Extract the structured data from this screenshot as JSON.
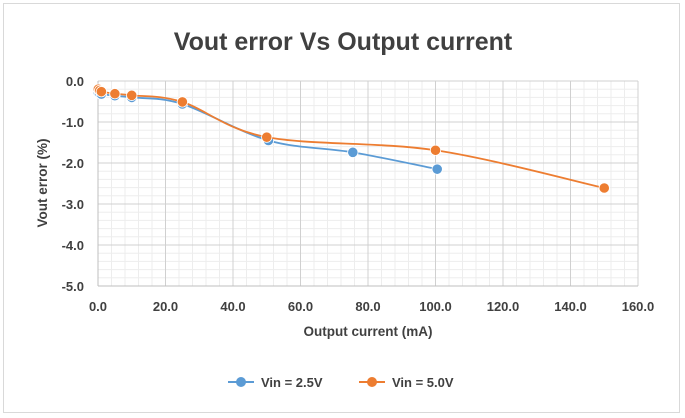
{
  "chart_data": {
    "type": "scatter",
    "title": "Vout error Vs Output current",
    "xlabel": "Output current (mA)",
    "ylabel": "Vout error (%)",
    "xlim": [
      0,
      160
    ],
    "ylim": [
      -5,
      0
    ],
    "x_ticks": [
      "0.0",
      "20.0",
      "40.0",
      "60.0",
      "80.0",
      "100.0",
      "120.0",
      "140.0",
      "160.0"
    ],
    "y_ticks": [
      "0.0",
      "-1.0",
      "-2.0",
      "-3.0",
      "-4.0",
      "-5.0"
    ],
    "grid": true,
    "minor_grid": true,
    "smoothed_lines": true,
    "legend_position": "bottom",
    "series": [
      {
        "name": "Vin = 2.5V",
        "color": "#5b9bd5",
        "x": [
          0.1,
          0.5,
          1.0,
          5.0,
          10.0,
          25.0,
          50.5,
          75.5,
          100.5
        ],
        "y": [
          -0.28,
          -0.3,
          -0.32,
          -0.36,
          -0.4,
          -0.56,
          -1.45,
          -1.74,
          -2.15
        ]
      },
      {
        "name": "Vin = 5.0V",
        "color": "#ed7d31",
        "x": [
          0.1,
          0.5,
          1.0,
          5.0,
          10.0,
          25.0,
          50.0,
          100.0,
          150.0
        ],
        "y": [
          -0.2,
          -0.23,
          -0.26,
          -0.31,
          -0.35,
          -0.51,
          -1.37,
          -1.69,
          -2.61
        ]
      }
    ]
  }
}
